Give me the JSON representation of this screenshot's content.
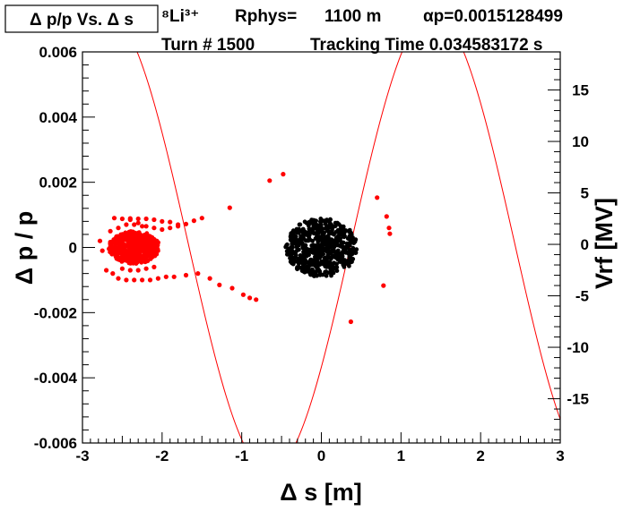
{
  "chart_data": {
    "type": "scatter",
    "title": "Δ p/p Vs. Δ s",
    "header": {
      "isotope": "⁸Li³⁺",
      "rphys_label": "Rphys=",
      "rphys_value": "1100 m",
      "alpha_label": "αp=0.0015128499",
      "turn": "Turn # 1500",
      "tracking_time": "Tracking Time 0.034583172 s"
    },
    "xlabel": "Δ s [m]",
    "ylabel": "Δ p / p",
    "y2label": "Vrf [MV]",
    "xlim": [
      -3,
      3
    ],
    "ylim": [
      -0.006,
      0.006
    ],
    "y2lim": [
      -19.3,
      18.7
    ],
    "xticks": [
      -3,
      -2,
      -1,
      0,
      1,
      2,
      3
    ],
    "xtick_labels": [
      "-3",
      "-2",
      "-1",
      "0",
      "1",
      "2",
      "3"
    ],
    "yticks": [
      -0.006,
      -0.004,
      -0.002,
      0,
      0.002,
      0.004,
      0.006
    ],
    "ytick_labels": [
      "-0.006",
      "-0.004",
      "-0.002",
      "0",
      "0.002",
      "0.004",
      "0.006"
    ],
    "y2ticks": [
      -15,
      -10,
      -5,
      0,
      5,
      10,
      15
    ],
    "y2tick_labels": [
      "-15",
      "-10",
      "-5",
      "0",
      "5",
      "10",
      "15"
    ],
    "series": [
      {
        "name": "red-particles",
        "color": "#ff0000",
        "points": [
          [
            -0.65,
            0.00205
          ],
          [
            -0.48,
            0.00225
          ],
          [
            0.7,
            0.00153
          ],
          [
            0.82,
            0.00095
          ],
          [
            0.85,
            0.0006
          ],
          [
            0.86,
            0.00042
          ],
          [
            0.78,
            -0.00117
          ],
          [
            0.37,
            -0.00228
          ],
          [
            -1.15,
            0.00122
          ],
          [
            -1.5,
            0.0009
          ],
          [
            -1.6,
            0.00082
          ],
          [
            -1.7,
            0.00072
          ],
          [
            -1.8,
            0.00065
          ],
          [
            -1.9,
            0.0006
          ],
          [
            -2.0,
            0.00055
          ],
          [
            -2.1,
            0.0006
          ],
          [
            -2.2,
            0.00065
          ],
          [
            -2.3,
            0.00075
          ],
          [
            -2.4,
            0.00085
          ],
          [
            -2.5,
            0.00088
          ],
          [
            -2.6,
            0.0009
          ],
          [
            -2.2,
            0.00088
          ],
          [
            -2.3,
            0.00088
          ],
          [
            -2.4,
            0.00089
          ],
          [
            -2.1,
            0.00085
          ],
          [
            -2.0,
            0.0008
          ],
          [
            -1.9,
            0.00078
          ],
          [
            -1.8,
            0.0007
          ],
          [
            -2.65,
            0.0005
          ],
          [
            -2.75,
            -0.0001
          ],
          [
            -2.78,
            0.0002
          ],
          [
            -2.7,
            -0.0007
          ],
          [
            -2.62,
            -0.0008
          ],
          [
            -2.55,
            -0.00095
          ],
          [
            -2.45,
            -0.001
          ],
          [
            -2.35,
            -0.001
          ],
          [
            -2.25,
            -0.001
          ],
          [
            -2.15,
            -0.001
          ],
          [
            -2.05,
            -0.00095
          ],
          [
            -1.95,
            -0.0009
          ],
          [
            -1.85,
            -0.0009
          ],
          [
            -1.7,
            -0.00085
          ],
          [
            -1.55,
            -0.0008
          ],
          [
            -1.4,
            -0.00095
          ],
          [
            -1.28,
            -0.00115
          ],
          [
            -1.12,
            -0.00125
          ],
          [
            -0.98,
            -0.00145
          ],
          [
            -0.9,
            -0.00155
          ],
          [
            -0.82,
            -0.0016
          ],
          [
            -2.5,
            -0.00065
          ],
          [
            -2.4,
            -0.0007
          ],
          [
            -2.3,
            -0.0007
          ],
          [
            -2.2,
            -0.00065
          ],
          [
            -2.1,
            -0.0006
          ],
          [
            -2.55,
            0.0006
          ],
          [
            -2.45,
            0.0007
          ],
          [
            -2.35,
            0.0007
          ],
          [
            -2.25,
            0.00065
          ]
        ]
      },
      {
        "name": "black-bunch",
        "color": "#000000",
        "center": [
          0.0,
          0.0
        ],
        "radius_x": 0.45,
        "radius_y": 0.0009,
        "count": 600
      },
      {
        "name": "red-core",
        "color": "#ff0000",
        "center": [
          -2.35,
          0.0
        ],
        "radius_x": 0.32,
        "radius_y": 0.0005,
        "count": 500
      }
    ],
    "curve": {
      "name": "rf-voltage",
      "color": "#ff0000",
      "amplitude_mv": 22.3,
      "period_m": 4.1,
      "peak_x": 1.4,
      "offset_mv": 0.2
    }
  }
}
